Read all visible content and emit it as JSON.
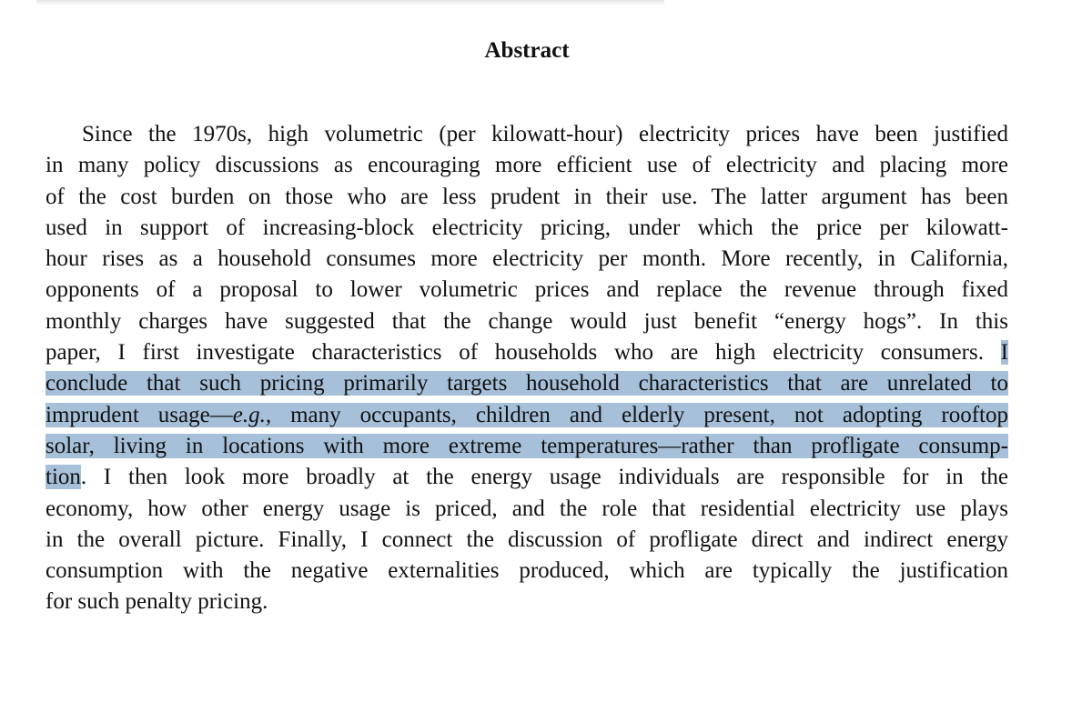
{
  "heading": "Abstract",
  "lines": [
    "Since the 1970s, high volumetric (per kilowatt-hour) electricity prices have been justified",
    "in many policy discussions as encouraging more efficient use of electricity and placing more",
    "of the cost burden on those who are less prudent in their use. The latter argument has been",
    "used in support of increasing-block electricity pricing, under which the price per kilowatt-",
    "hour rises as a household consumes more electricity per month. More recently, in California,",
    "opponents of a proposal to lower volumetric prices and replace the revenue through fixed",
    "monthly charges have suggested that the change would just benefit “energy hogs”. In this"
  ],
  "line8_plain": "paper, I first investigate characteristics of households who are high electricity consumers. ",
  "line8_highlight": "I",
  "line9_highlight": "conclude that such pricing primarily targets household characteristics that are unrelated to",
  "line10_highlight_a": "imprudent usage—",
  "line10_highlight_eg": "e.g.,",
  "line10_highlight_b": " many occupants, children and elderly present, not adopting rooftop",
  "line11_highlight": "solar, living in locations with more extreme temperatures—rather than profligate consump-",
  "line12_highlight": "tion",
  "line12_plain": ". I then look more broadly at the energy usage individuals are responsible for in the",
  "lines_after": [
    "economy, how other energy usage is priced, and the role that residential electricity use plays",
    "in the overall picture. Finally, I connect the discussion of profligate direct and indirect energy",
    "consumption with the negative externalities produced, which are typically the justification"
  ],
  "last_line": "for such penalty pricing.",
  "colors": {
    "highlight": "#a7c0d9",
    "text": "#111111"
  }
}
